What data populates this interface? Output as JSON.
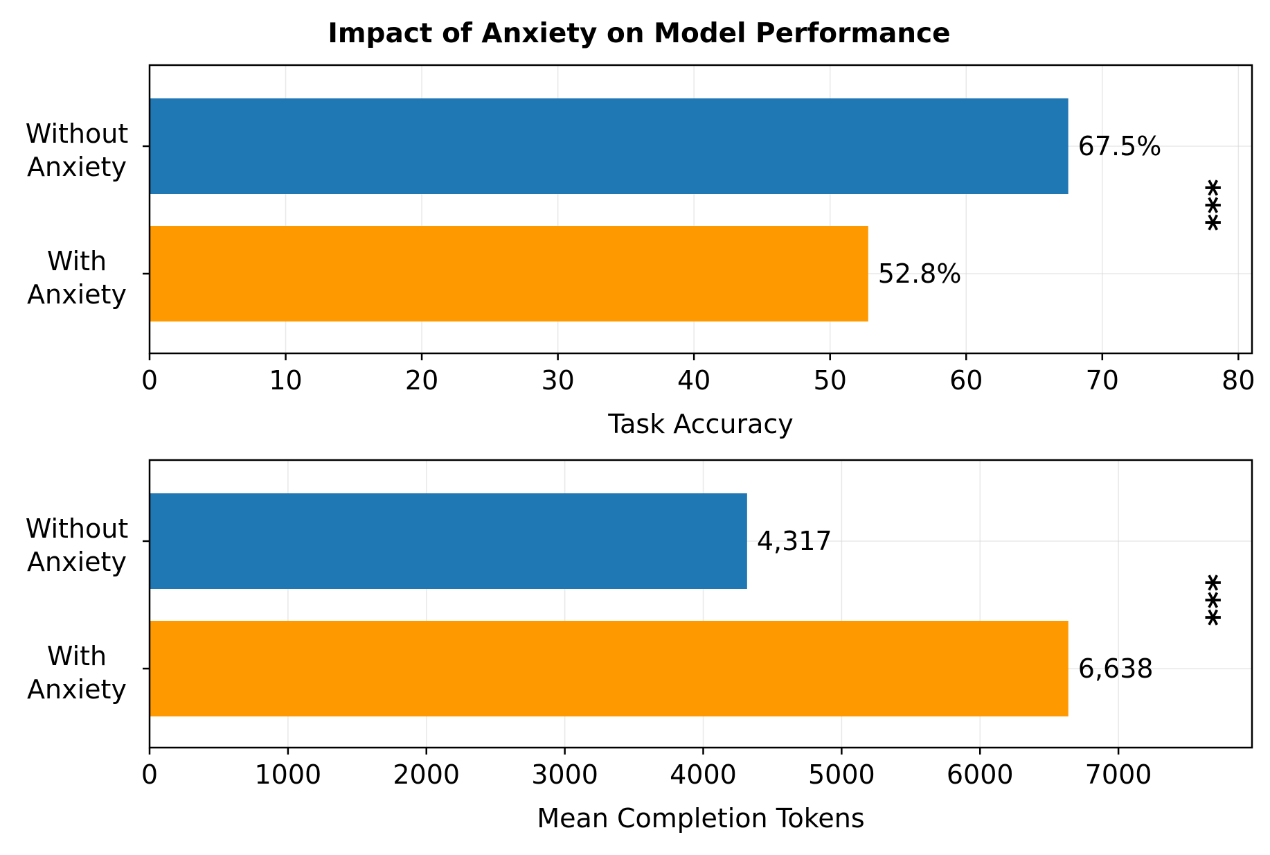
{
  "title": "Impact of Anxiety on Model Performance",
  "colors": {
    "without_anxiety": "#1f77b4",
    "with_anxiety": "#ff9900"
  },
  "chart_data": [
    {
      "type": "bar",
      "orientation": "horizontal",
      "categories": [
        "Without\nAnxiety",
        "With\nAnxiety"
      ],
      "values": [
        67.5,
        52.8
      ],
      "value_labels": [
        "67.5%",
        "52.8%"
      ],
      "xlabel": "Task Accuracy",
      "xlim": [
        0,
        81
      ],
      "xticks": [
        0,
        10,
        20,
        30,
        40,
        50,
        60,
        70,
        80
      ],
      "grid": true,
      "annotation": "***"
    },
    {
      "type": "bar",
      "orientation": "horizontal",
      "categories": [
        "Without\nAnxiety",
        "With\nAnxiety"
      ],
      "values": [
        4317,
        6638
      ],
      "value_labels": [
        "4,317",
        "6,638"
      ],
      "xlabel": "Mean Completion Tokens",
      "xlim": [
        0,
        7965
      ],
      "xticks": [
        0,
        1000,
        2000,
        3000,
        4000,
        5000,
        6000,
        7000
      ],
      "grid": true,
      "annotation": "***"
    }
  ]
}
